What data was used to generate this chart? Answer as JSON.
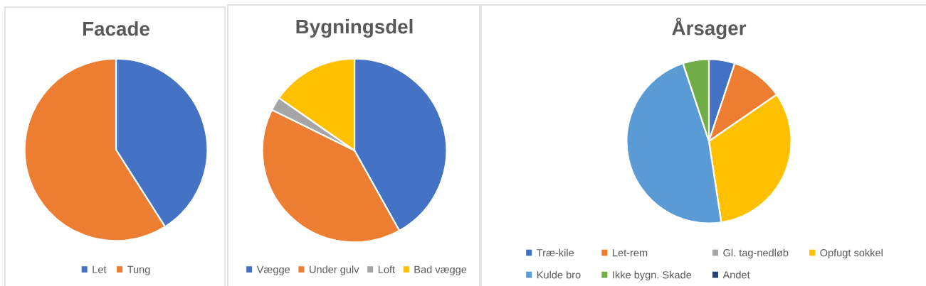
{
  "chart_data": [
    {
      "type": "pie",
      "title": "Facade",
      "categories": [
        "Let",
        "Tung"
      ],
      "values": [
        41,
        59
      ],
      "colors": [
        "#4472c4",
        "#ed7d31"
      ],
      "legend": "bottom"
    },
    {
      "type": "pie",
      "title": "Bygningsdel",
      "categories": [
        "Vægge",
        "Under gulv",
        "Loft",
        "Bad vægge"
      ],
      "values": [
        41.9,
        40.4,
        2.4,
        15.3
      ],
      "colors": [
        "#4472c4",
        "#ed7d31",
        "#a5a5a5",
        "#ffc000"
      ],
      "legend": "bottom"
    },
    {
      "type": "pie",
      "title": "Årsager",
      "categories": [
        "Træ-kile",
        "Let-rem",
        "Gl. tag-nedløb",
        "Opfugt sokkel",
        "Kulde bro",
        "Ikke bygn. Skade",
        "Andet"
      ],
      "values": [
        5.1,
        10.3,
        0,
        32.2,
        47.3,
        5.1,
        0
      ],
      "colors": [
        "#4472c4",
        "#ed7d31",
        "#a5a5a5",
        "#ffc000",
        "#5b9bd5",
        "#70ad47",
        "#264478"
      ],
      "legend": "bottom"
    }
  ]
}
